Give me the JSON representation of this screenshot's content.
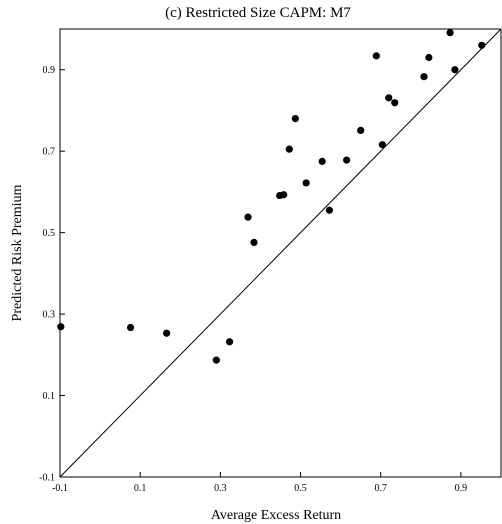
{
  "chart_data": {
    "type": "scatter",
    "title": "(c) Restricted Size CAPM: M7",
    "xlabel": "Average Excess Return",
    "ylabel": "Predicted Risk Premium",
    "xlim": [
      -0.1,
      1.0
    ],
    "ylim": [
      -0.1,
      1.0
    ],
    "xticks": [
      -0.1,
      0.1,
      0.3,
      0.5,
      0.7,
      0.9
    ],
    "yticks": [
      -0.1,
      0.1,
      0.3,
      0.5,
      0.7,
      0.9
    ],
    "xtick_labels": [
      "-0.1",
      "0.1",
      "0.3",
      "0.5",
      "0.7",
      "0.9"
    ],
    "ytick_labels": [
      "-0.1",
      "0.1",
      "0.3",
      "0.5",
      "0.7",
      "0.9"
    ],
    "grid": false,
    "legend": "none",
    "reference_line": {
      "type": "45-degree",
      "from": [
        -0.1,
        -0.1
      ],
      "to": [
        1.0,
        1.0
      ]
    },
    "points": [
      {
        "x": -0.098,
        "y": 0.269
      },
      {
        "x": 0.076,
        "y": 0.267
      },
      {
        "x": 0.166,
        "y": 0.253
      },
      {
        "x": 0.29,
        "y": 0.187
      },
      {
        "x": 0.323,
        "y": 0.232
      },
      {
        "x": 0.369,
        "y": 0.538
      },
      {
        "x": 0.384,
        "y": 0.476
      },
      {
        "x": 0.448,
        "y": 0.591
      },
      {
        "x": 0.458,
        "y": 0.593
      },
      {
        "x": 0.472,
        "y": 0.705
      },
      {
        "x": 0.487,
        "y": 0.78
      },
      {
        "x": 0.514,
        "y": 0.622
      },
      {
        "x": 0.554,
        "y": 0.675
      },
      {
        "x": 0.572,
        "y": 0.555
      },
      {
        "x": 0.615,
        "y": 0.678
      },
      {
        "x": 0.65,
        "y": 0.751
      },
      {
        "x": 0.689,
        "y": 0.934
      },
      {
        "x": 0.704,
        "y": 0.716
      },
      {
        "x": 0.72,
        "y": 0.831
      },
      {
        "x": 0.735,
        "y": 0.819
      },
      {
        "x": 0.808,
        "y": 0.883
      },
      {
        "x": 0.82,
        "y": 0.93
      },
      {
        "x": 0.873,
        "y": 0.991
      },
      {
        "x": 0.885,
        "y": 0.9
      },
      {
        "x": 0.952,
        "y": 0.96
      }
    ]
  }
}
